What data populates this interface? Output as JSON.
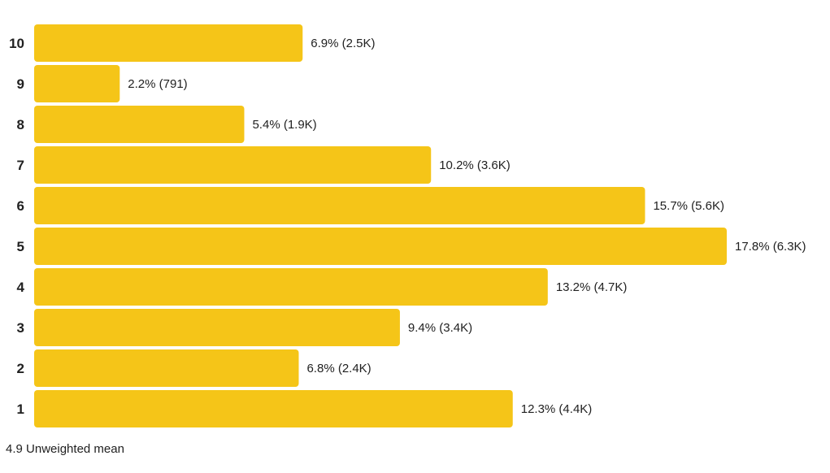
{
  "chart_data": {
    "type": "bar",
    "orientation": "horizontal",
    "categories": [
      "10",
      "9",
      "8",
      "7",
      "6",
      "5",
      "4",
      "3",
      "2",
      "1"
    ],
    "values": [
      6.9,
      2.2,
      5.4,
      10.2,
      15.7,
      17.8,
      13.2,
      9.4,
      6.8,
      12.3
    ],
    "data_labels": [
      "6.9% (2.5K)",
      "2.2% (791)",
      "5.4% (1.9K)",
      "10.2% (3.6K)",
      "15.7% (5.6K)",
      "17.8% (6.3K)",
      "13.2% (4.7K)",
      "9.4% (3.4K)",
      "6.8% (2.4K)",
      "12.3% (4.4K)"
    ],
    "unit": "%",
    "bar_color": "#f5c518",
    "grid": false,
    "legend": "none"
  },
  "footer": {
    "mean_value": "4.9",
    "mean_label": "Unweighted mean"
  }
}
